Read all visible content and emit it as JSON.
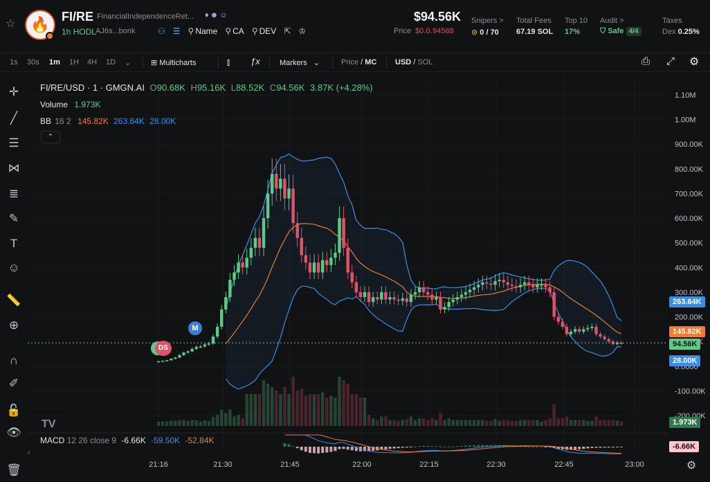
{
  "header": {
    "ticker": "FI/RE",
    "full_name": "FinancialIndependenceRet...",
    "age": "1h",
    "hodl_label": "HODL",
    "address": "AJ6s...bonk",
    "links": [
      {
        "icon": "tag-icon",
        "label": "Name"
      },
      {
        "icon": "search-icon",
        "label": "CA"
      },
      {
        "icon": "search-icon",
        "label": "DEV"
      }
    ],
    "market_cap": "$94.56K",
    "price_label": "Price",
    "price_value": "$0.0․94568",
    "stats": [
      {
        "label": "Snipers >",
        "value": "0 / 70"
      },
      {
        "label": "Total Fees",
        "value": "67.19 SOL"
      },
      {
        "label": "Top 10",
        "value": "17%"
      },
      {
        "label": "Audit >",
        "value": "Safe",
        "badge": "4/4"
      },
      {
        "label": "Taxes",
        "value": "Dex",
        "extra": "0.25%"
      }
    ]
  },
  "toolbar": {
    "timeframes": [
      "1s",
      "30s",
      "1m",
      "1H",
      "4H",
      "1D"
    ],
    "active_timeframe": "1m",
    "multicharts": "Multicharts",
    "markers": "Markers",
    "price": "Price",
    "mc": "MC",
    "usd": "USD",
    "sol": "SOL"
  },
  "legend": {
    "symbol": "FI/RE/USD · 1 · GMGN.AI",
    "o_label": "O",
    "o": "90.68K",
    "h_label": "H",
    "h": "95.16K",
    "l_label": "L",
    "l": "88.52K",
    "c_label": "C",
    "c": "94.56K",
    "change": "3.87K (+4.28%)",
    "volume_label": "Volume",
    "volume": "1.973K",
    "bb_label": "BB",
    "bb_params": "16 2",
    "bb_mid": "145.82K",
    "bb_upper": "263.64K",
    "bb_lower": "28.00K",
    "macd_label": "MACD",
    "macd_params": "12 26 close 9",
    "macd_hist": "-6.66K",
    "macd_line": "-59.50K",
    "macd_signal": "-52.84K"
  },
  "markers": {
    "m": "M",
    "ds": "DS"
  },
  "chart_data": {
    "type": "candlestick",
    "y_ticks": [
      "1.10M",
      "1.00M",
      "900.00K",
      "800.00K",
      "700.00K",
      "600.00K",
      "500.00K",
      "400.00K",
      "300.00K",
      "200.00K",
      "100.00K",
      "0.0000",
      "-100.00K",
      "-200.00K"
    ],
    "ylim": [
      -200000,
      1100000
    ],
    "x_ticks": [
      "21:16",
      "21:30",
      "21:45",
      "22:00",
      "22:15",
      "22:30",
      "22:45",
      "23:00"
    ],
    "price_tags": {
      "upper": "263.64K",
      "mid": "145.82K",
      "last": "94.56K",
      "lower": "28.00K",
      "volume": "1.973K",
      "macd": "-6.66K"
    },
    "colors": {
      "up": "#5fc98a",
      "down": "#e0546a",
      "bb_upper": "#3a8ee8",
      "bb_mid": "#f07c33",
      "bb_lower": "#3a8ee8"
    }
  }
}
